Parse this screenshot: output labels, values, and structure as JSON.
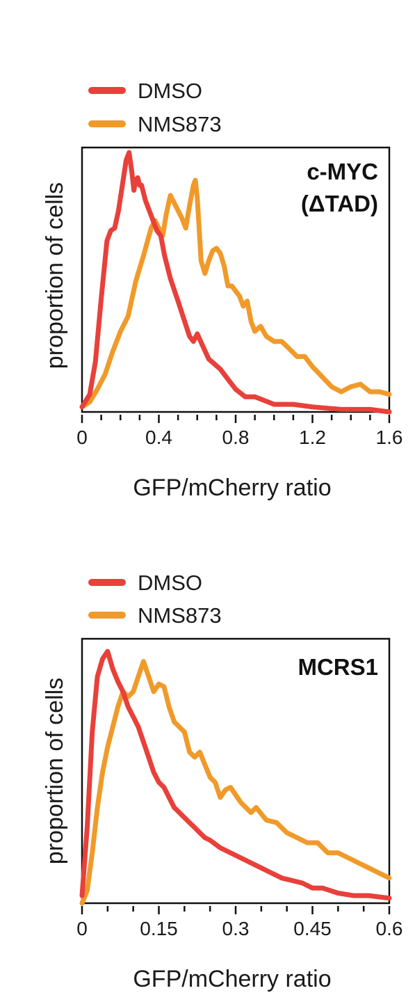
{
  "chart_data": [
    {
      "type": "line",
      "title": [
        "c-MYC",
        "(ΔTAD)"
      ],
      "xlabel": "GFP/mCherry ratio",
      "ylabel": "proportion of cells",
      "xlim": [
        0,
        1.6
      ],
      "ylim": [
        0,
        1.05
      ],
      "xticks": [
        0,
        0.4,
        0.8,
        1.2,
        1.6
      ],
      "xtick_labels": [
        "0",
        "0.4",
        "0.8",
        "1.2",
        "1.6"
      ],
      "minor_xtick_step": 0.1,
      "legend_position": "top-left, above plot",
      "series": [
        {
          "name": "DMSO",
          "color": "#e8403a",
          "x": [
            0,
            0.04,
            0.07,
            0.1,
            0.13,
            0.15,
            0.17,
            0.19,
            0.21,
            0.23,
            0.245,
            0.26,
            0.27,
            0.28,
            0.29,
            0.3,
            0.31,
            0.33,
            0.35,
            0.37,
            0.39,
            0.41,
            0.43,
            0.46,
            0.5,
            0.53,
            0.56,
            0.58,
            0.6,
            0.63,
            0.66,
            0.69,
            0.72,
            0.76,
            0.8,
            0.85,
            0.9,
            1.0,
            1.1,
            1.2,
            1.35,
            1.5,
            1.6
          ],
          "y": [
            0.02,
            0.07,
            0.2,
            0.45,
            0.68,
            0.72,
            0.73,
            0.8,
            0.9,
            1.0,
            1.03,
            0.95,
            0.88,
            0.92,
            0.93,
            0.9,
            0.9,
            0.84,
            0.8,
            0.76,
            0.72,
            0.7,
            0.62,
            0.53,
            0.44,
            0.37,
            0.3,
            0.28,
            0.31,
            0.26,
            0.21,
            0.19,
            0.17,
            0.13,
            0.09,
            0.06,
            0.06,
            0.03,
            0.03,
            0.02,
            0.01,
            0.01,
            0.0
          ]
        },
        {
          "name": "NMS873",
          "color": "#f09a2a",
          "x": [
            0,
            0.04,
            0.08,
            0.12,
            0.16,
            0.2,
            0.24,
            0.28,
            0.32,
            0.36,
            0.38,
            0.4,
            0.42,
            0.44,
            0.46,
            0.48,
            0.5,
            0.52,
            0.54,
            0.56,
            0.58,
            0.59,
            0.6,
            0.62,
            0.64,
            0.66,
            0.68,
            0.7,
            0.72,
            0.74,
            0.76,
            0.78,
            0.8,
            0.82,
            0.84,
            0.86,
            0.88,
            0.9,
            0.93,
            0.96,
            1.0,
            1.04,
            1.08,
            1.12,
            1.16,
            1.2,
            1.25,
            1.3,
            1.35,
            1.4,
            1.45,
            1.5,
            1.55,
            1.6
          ],
          "y": [
            0.02,
            0.04,
            0.09,
            0.15,
            0.24,
            0.32,
            0.38,
            0.52,
            0.62,
            0.73,
            0.76,
            0.73,
            0.7,
            0.79,
            0.86,
            0.83,
            0.8,
            0.77,
            0.73,
            0.82,
            0.9,
            0.92,
            0.85,
            0.6,
            0.55,
            0.6,
            0.64,
            0.65,
            0.63,
            0.58,
            0.5,
            0.5,
            0.48,
            0.46,
            0.42,
            0.44,
            0.36,
            0.32,
            0.34,
            0.3,
            0.28,
            0.28,
            0.25,
            0.22,
            0.22,
            0.18,
            0.14,
            0.1,
            0.08,
            0.1,
            0.11,
            0.08,
            0.08,
            0.07
          ]
        }
      ]
    },
    {
      "type": "line",
      "title": [
        "MCRS1"
      ],
      "xlabel": "GFP/mCherry ratio",
      "ylabel": "proportion of cells",
      "xlim": [
        0,
        0.6
      ],
      "ylim": [
        0,
        1.05
      ],
      "xticks": [
        0,
        0.15,
        0.3,
        0.45,
        0.6
      ],
      "xtick_labels": [
        "0",
        "0.15",
        "0.3",
        "0.45",
        "0.6"
      ],
      "minor_xtick_step": 0.05,
      "legend_position": "top-left, above plot",
      "series": [
        {
          "name": "DMSO",
          "color": "#e8403a",
          "x": [
            0,
            0.01,
            0.02,
            0.03,
            0.04,
            0.05,
            0.06,
            0.07,
            0.08,
            0.09,
            0.1,
            0.11,
            0.12,
            0.13,
            0.14,
            0.15,
            0.16,
            0.17,
            0.18,
            0.19,
            0.2,
            0.21,
            0.22,
            0.23,
            0.24,
            0.25,
            0.27,
            0.29,
            0.31,
            0.33,
            0.35,
            0.37,
            0.39,
            0.41,
            0.43,
            0.45,
            0.47,
            0.5,
            0.53,
            0.56,
            0.6
          ],
          "y": [
            0.03,
            0.3,
            0.68,
            0.9,
            0.97,
            1.0,
            0.93,
            0.88,
            0.84,
            0.78,
            0.74,
            0.7,
            0.64,
            0.58,
            0.52,
            0.48,
            0.46,
            0.42,
            0.38,
            0.36,
            0.34,
            0.32,
            0.3,
            0.28,
            0.26,
            0.25,
            0.22,
            0.2,
            0.18,
            0.16,
            0.14,
            0.12,
            0.1,
            0.09,
            0.08,
            0.06,
            0.06,
            0.04,
            0.03,
            0.03,
            0.02
          ]
        },
        {
          "name": "NMS873",
          "color": "#f09a2a",
          "x": [
            0,
            0.01,
            0.02,
            0.03,
            0.04,
            0.05,
            0.06,
            0.07,
            0.08,
            0.09,
            0.1,
            0.11,
            0.12,
            0.13,
            0.14,
            0.15,
            0.16,
            0.17,
            0.18,
            0.19,
            0.2,
            0.21,
            0.22,
            0.23,
            0.24,
            0.25,
            0.26,
            0.27,
            0.28,
            0.29,
            0.3,
            0.31,
            0.32,
            0.33,
            0.34,
            0.36,
            0.38,
            0.4,
            0.42,
            0.44,
            0.46,
            0.48,
            0.5,
            0.52,
            0.54,
            0.56,
            0.58,
            0.6
          ],
          "y": [
            0.0,
            0.05,
            0.2,
            0.38,
            0.52,
            0.62,
            0.7,
            0.78,
            0.84,
            0.82,
            0.84,
            0.9,
            0.96,
            0.9,
            0.84,
            0.87,
            0.86,
            0.78,
            0.72,
            0.7,
            0.68,
            0.6,
            0.58,
            0.6,
            0.55,
            0.5,
            0.48,
            0.42,
            0.45,
            0.46,
            0.43,
            0.4,
            0.38,
            0.36,
            0.38,
            0.33,
            0.32,
            0.28,
            0.26,
            0.24,
            0.24,
            0.2,
            0.2,
            0.18,
            0.16,
            0.14,
            0.12,
            0.1
          ]
        }
      ]
    }
  ]
}
